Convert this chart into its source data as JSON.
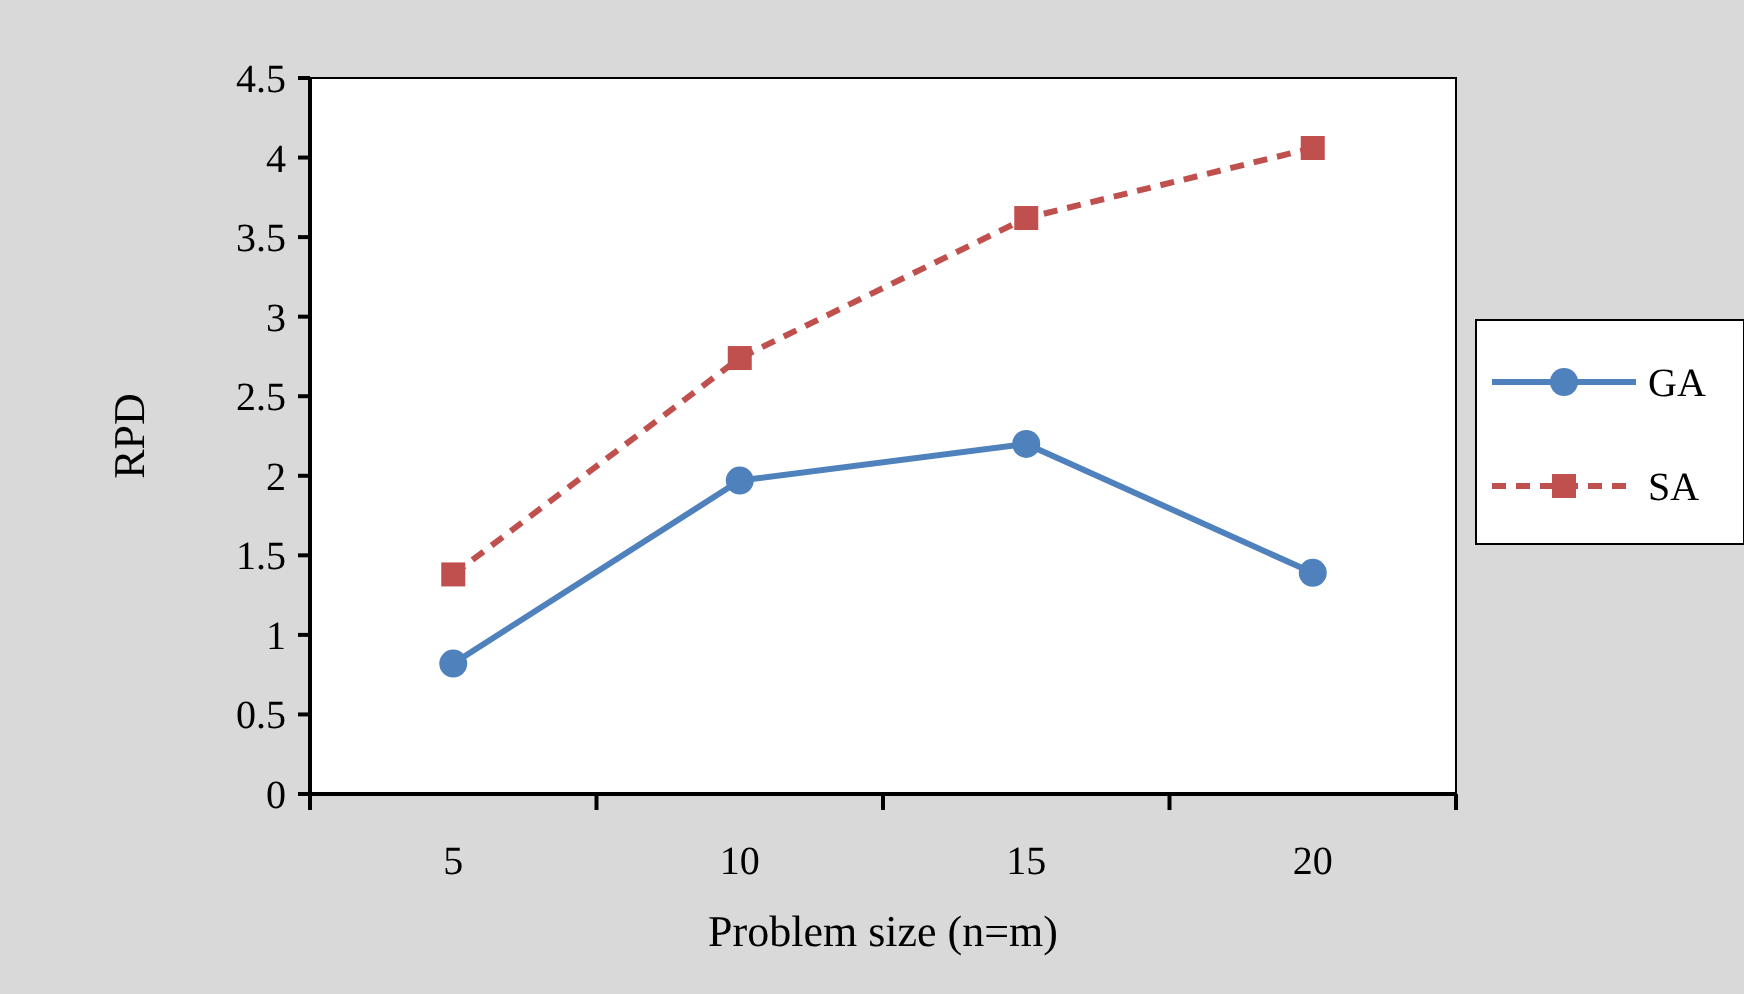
{
  "chart_data": {
    "type": "line",
    "xlabel": "Problem size (n=m)",
    "ylabel": "RPD",
    "categories": [
      "5",
      "10",
      "15",
      "20"
    ],
    "series": [
      {
        "name": "GA",
        "color": "#4f81bd",
        "values": [
          0.82,
          1.97,
          2.2,
          1.39
        ],
        "marker": "circle",
        "line_style": "solid"
      },
      {
        "name": "SA",
        "color": "#c0504d",
        "values": [
          1.38,
          2.74,
          3.62,
          4.06
        ],
        "marker": "square",
        "line_style": "dashed"
      }
    ],
    "ylim": [
      0,
      4.5
    ],
    "yticks": [
      0,
      {
        "value": 0.5,
        "label": "0.5"
      },
      1,
      {
        "value": 1.5,
        "label": "1.5"
      },
      2,
      {
        "value": 2.5,
        "label": "2.5"
      },
      3,
      {
        "value": 3.5,
        "label": "3.5"
      },
      4,
      {
        "value": 4.5,
        "label": "4.5"
      }
    ],
    "grid": false,
    "legend": "right"
  }
}
